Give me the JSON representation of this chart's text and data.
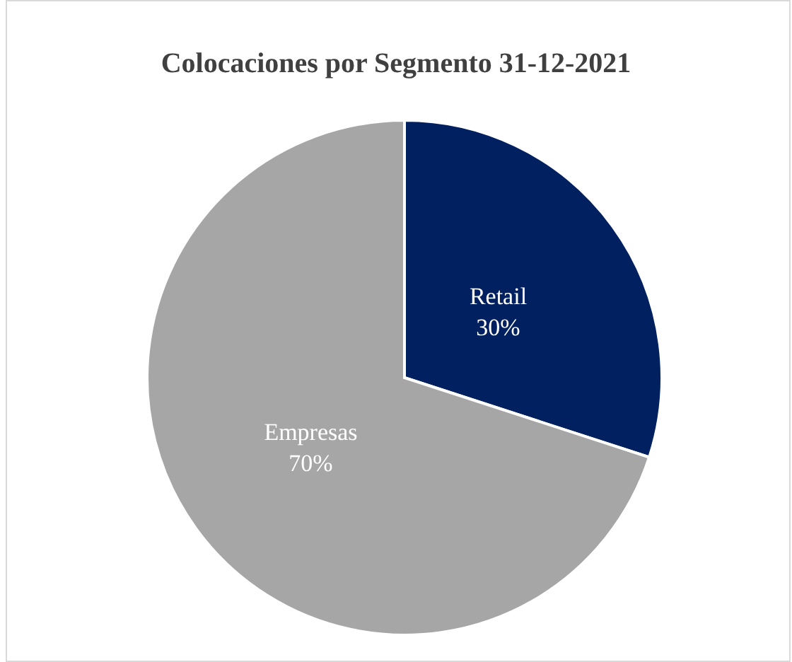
{
  "chart_data": {
    "type": "pie",
    "title": "Colocaciones por Segmento 31-12-2021",
    "categories": [
      "Retail",
      "Empresas"
    ],
    "values": [
      30,
      70
    ],
    "colors": [
      "#002060",
      "#a6a6a6"
    ],
    "value_labels": [
      "30%",
      "70%"
    ]
  }
}
